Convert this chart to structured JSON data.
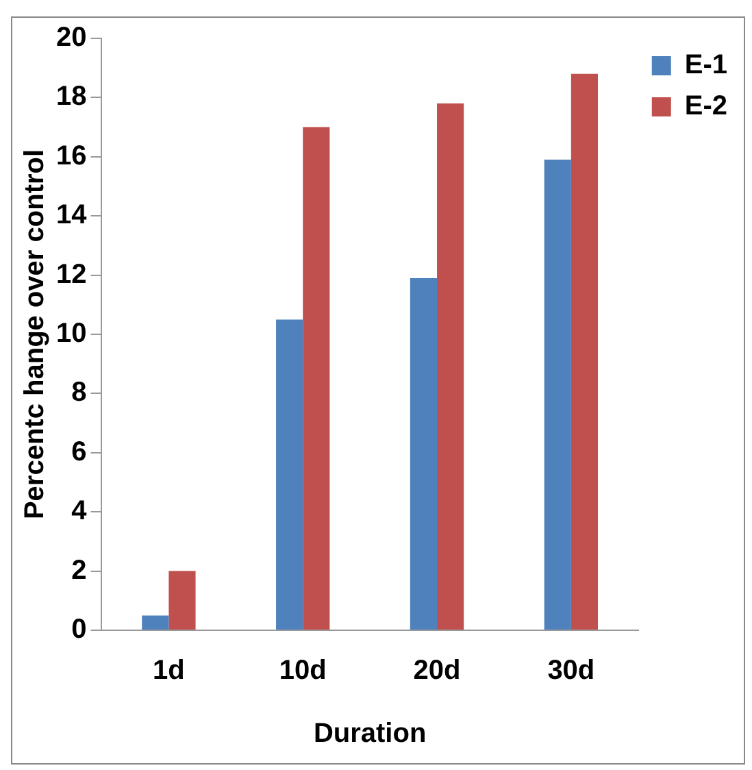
{
  "chart_data": {
    "type": "bar",
    "xlabel": "Duration",
    "ylabel": "Percentc hange over control",
    "categories": [
      "1d",
      "10d",
      "20d",
      "30d"
    ],
    "series": [
      {
        "name": "E-1",
        "color": "#4f81bd",
        "values": [
          0.5,
          10.5,
          11.9,
          15.9
        ]
      },
      {
        "name": "E-2",
        "color": "#c0504d",
        "values": [
          2.0,
          17.0,
          17.8,
          18.8
        ]
      }
    ],
    "ylim": [
      0,
      20
    ],
    "yticks": [
      0,
      2,
      4,
      6,
      8,
      10,
      12,
      14,
      16,
      18,
      20
    ],
    "grid": false,
    "legend": "top right"
  }
}
